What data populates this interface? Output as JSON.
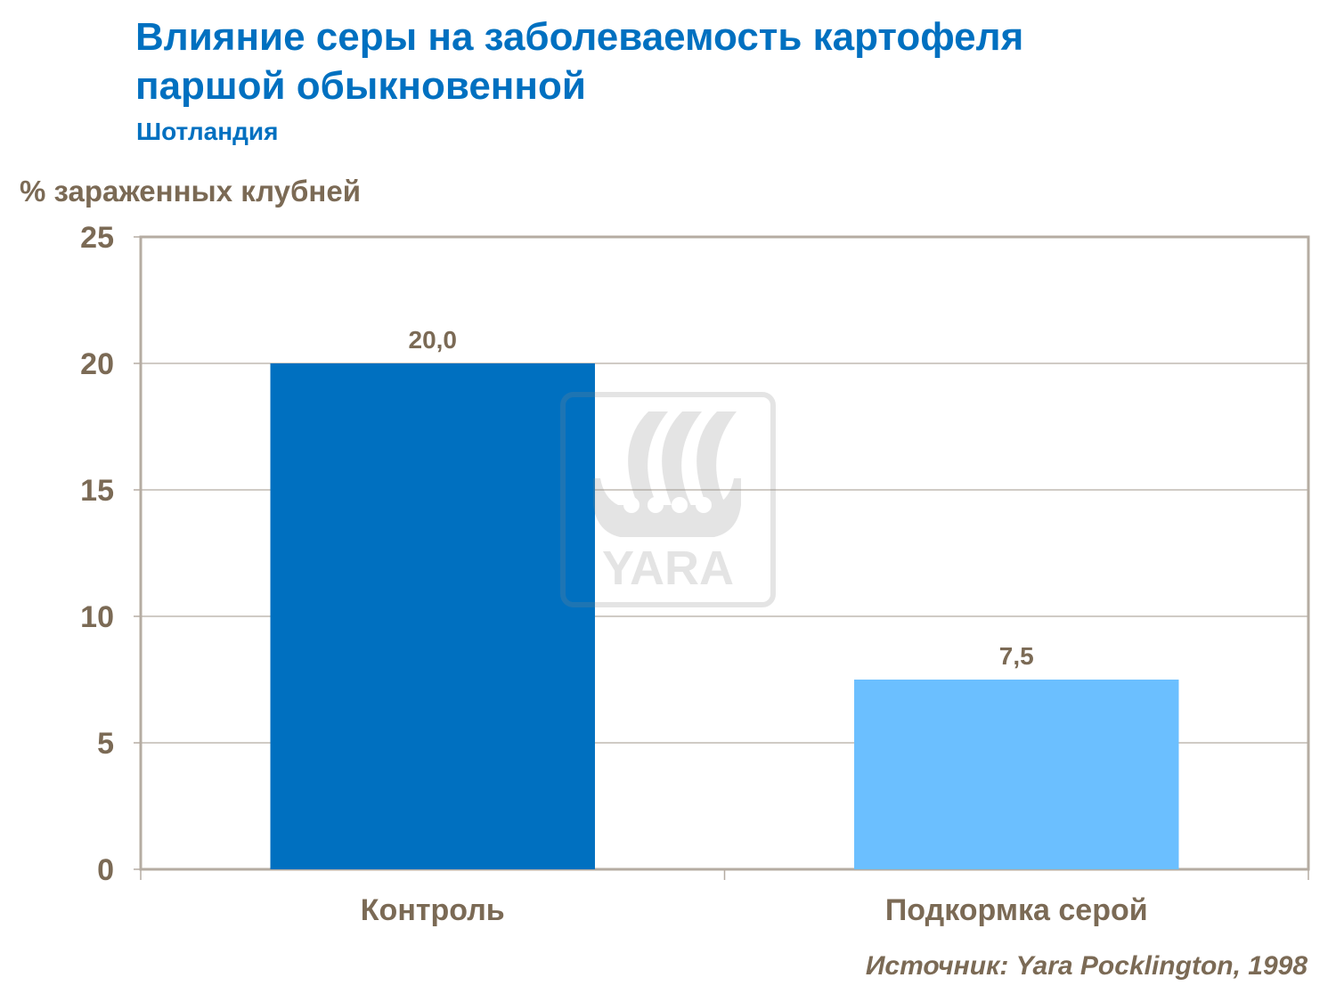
{
  "chart_data": {
    "type": "bar",
    "title": "Влияние серы на заболеваемость картофеля паршой обыкновенной",
    "title_lines": [
      "Влияние серы на заболеваемость картофеля",
      "паршой обыкновенной"
    ],
    "subtitle": "Шотландия",
    "xlabel": "",
    "ylabel": "% зараженных клубней",
    "categories": [
      "Контроль",
      "Подкормка серой"
    ],
    "values": [
      20.0,
      7.5
    ],
    "data_labels": [
      "20,0",
      "7,5"
    ],
    "colors": [
      "#0070c0",
      "#6bbfff"
    ],
    "ylim": [
      0,
      25
    ],
    "yticks": [
      "0",
      "5",
      "10",
      "15",
      "20",
      "25"
    ],
    "grid": true,
    "legend": "none",
    "source": "Источник: Yara Pocklington, 1998",
    "watermark": "YARA"
  }
}
